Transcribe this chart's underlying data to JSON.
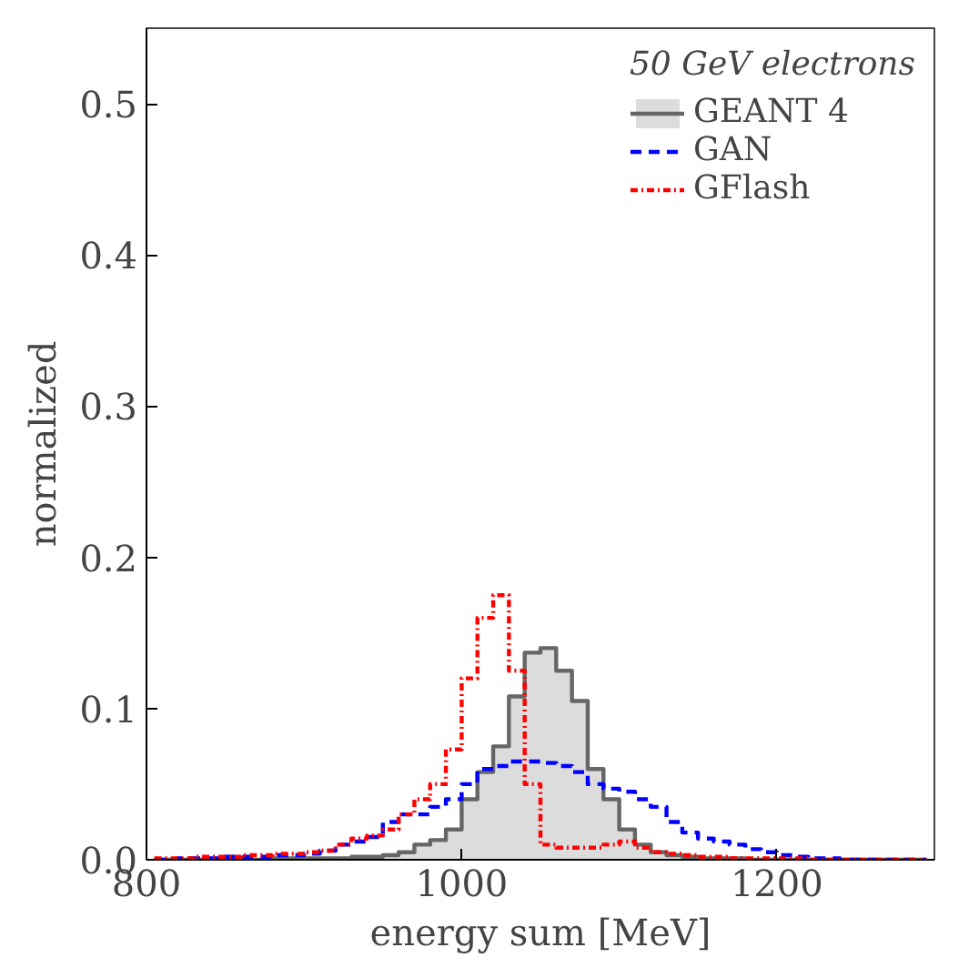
{
  "chart_data": {
    "type": "step",
    "xlabel": "energy sum [MeV]",
    "ylabel": "normalized",
    "legend_title": "50 GeV electrons",
    "x": [
      805,
      815,
      825,
      835,
      845,
      855,
      865,
      875,
      885,
      895,
      905,
      915,
      925,
      935,
      945,
      955,
      965,
      975,
      985,
      995,
      1005,
      1015,
      1025,
      1035,
      1045,
      1055,
      1065,
      1075,
      1085,
      1095,
      1105,
      1115,
      1125,
      1135,
      1145,
      1155,
      1165,
      1175,
      1185,
      1195,
      1205,
      1215,
      1225,
      1235,
      1245,
      1255,
      1265,
      1275,
      1285,
      1295
    ],
    "series": [
      {
        "name": "GEANT 4",
        "type": "area",
        "color": "#666666",
        "line_style": "solid",
        "values": [
          0,
          0,
          0,
          0,
          0,
          0,
          0,
          0,
          0.001,
          0.001,
          0.001,
          0.001,
          0.001,
          0.002,
          0.002,
          0.003,
          0.005,
          0.01,
          0.013,
          0.02,
          0.04,
          0.058,
          0.075,
          0.108,
          0.137,
          0.14,
          0.125,
          0.105,
          0.06,
          0.04,
          0.02,
          0.01,
          0.005,
          0.003,
          0.002,
          0.001,
          0.001,
          0.001,
          0,
          0,
          0,
          0,
          0,
          0,
          0,
          0,
          0,
          0,
          0,
          0
        ]
      },
      {
        "name": "GAN",
        "color": "#0000ff",
        "line_style": "dashed",
        "values": [
          0,
          0,
          0.001,
          0.001,
          0.001,
          0.002,
          0.002,
          0.002,
          0.003,
          0.003,
          0.004,
          0.006,
          0.01,
          0.012,
          0.015,
          0.025,
          0.03,
          0.03,
          0.035,
          0.04,
          0.05,
          0.06,
          0.062,
          0.065,
          0.065,
          0.064,
          0.062,
          0.058,
          0.05,
          0.047,
          0.045,
          0.04,
          0.035,
          0.025,
          0.018,
          0.014,
          0.012,
          0.01,
          0.007,
          0.005,
          0.003,
          0.002,
          0.001,
          0.001,
          0,
          0,
          0,
          0,
          0,
          0
        ]
      },
      {
        "name": "GFlash",
        "color": "#ff0000",
        "line_style": "dotted",
        "values": [
          0.001,
          0.001,
          0.001,
          0.002,
          0.002,
          0.002,
          0.003,
          0.003,
          0.004,
          0.004,
          0.005,
          0.006,
          0.01,
          0.014,
          0.016,
          0.02,
          0.03,
          0.04,
          0.05,
          0.073,
          0.12,
          0.16,
          0.175,
          0.125,
          0.05,
          0.01,
          0.008,
          0.008,
          0.008,
          0.01,
          0.012,
          0.008,
          0.005,
          0.004,
          0.003,
          0.002,
          0.002,
          0.001,
          0.001,
          0.001,
          0.001,
          0.001,
          0,
          0,
          0,
          0,
          0,
          0,
          0,
          0
        ]
      }
    ],
    "xlim": [
      800,
      1300
    ],
    "xticks": [
      800,
      1000,
      1200
    ],
    "ylim": [
      0,
      0.55
    ],
    "yticks": [
      {
        "value": 0,
        "label": "0.0"
      },
      0.1,
      0.2,
      0.3,
      0.4,
      0.5
    ],
    "grid": false,
    "legend": "top right"
  }
}
